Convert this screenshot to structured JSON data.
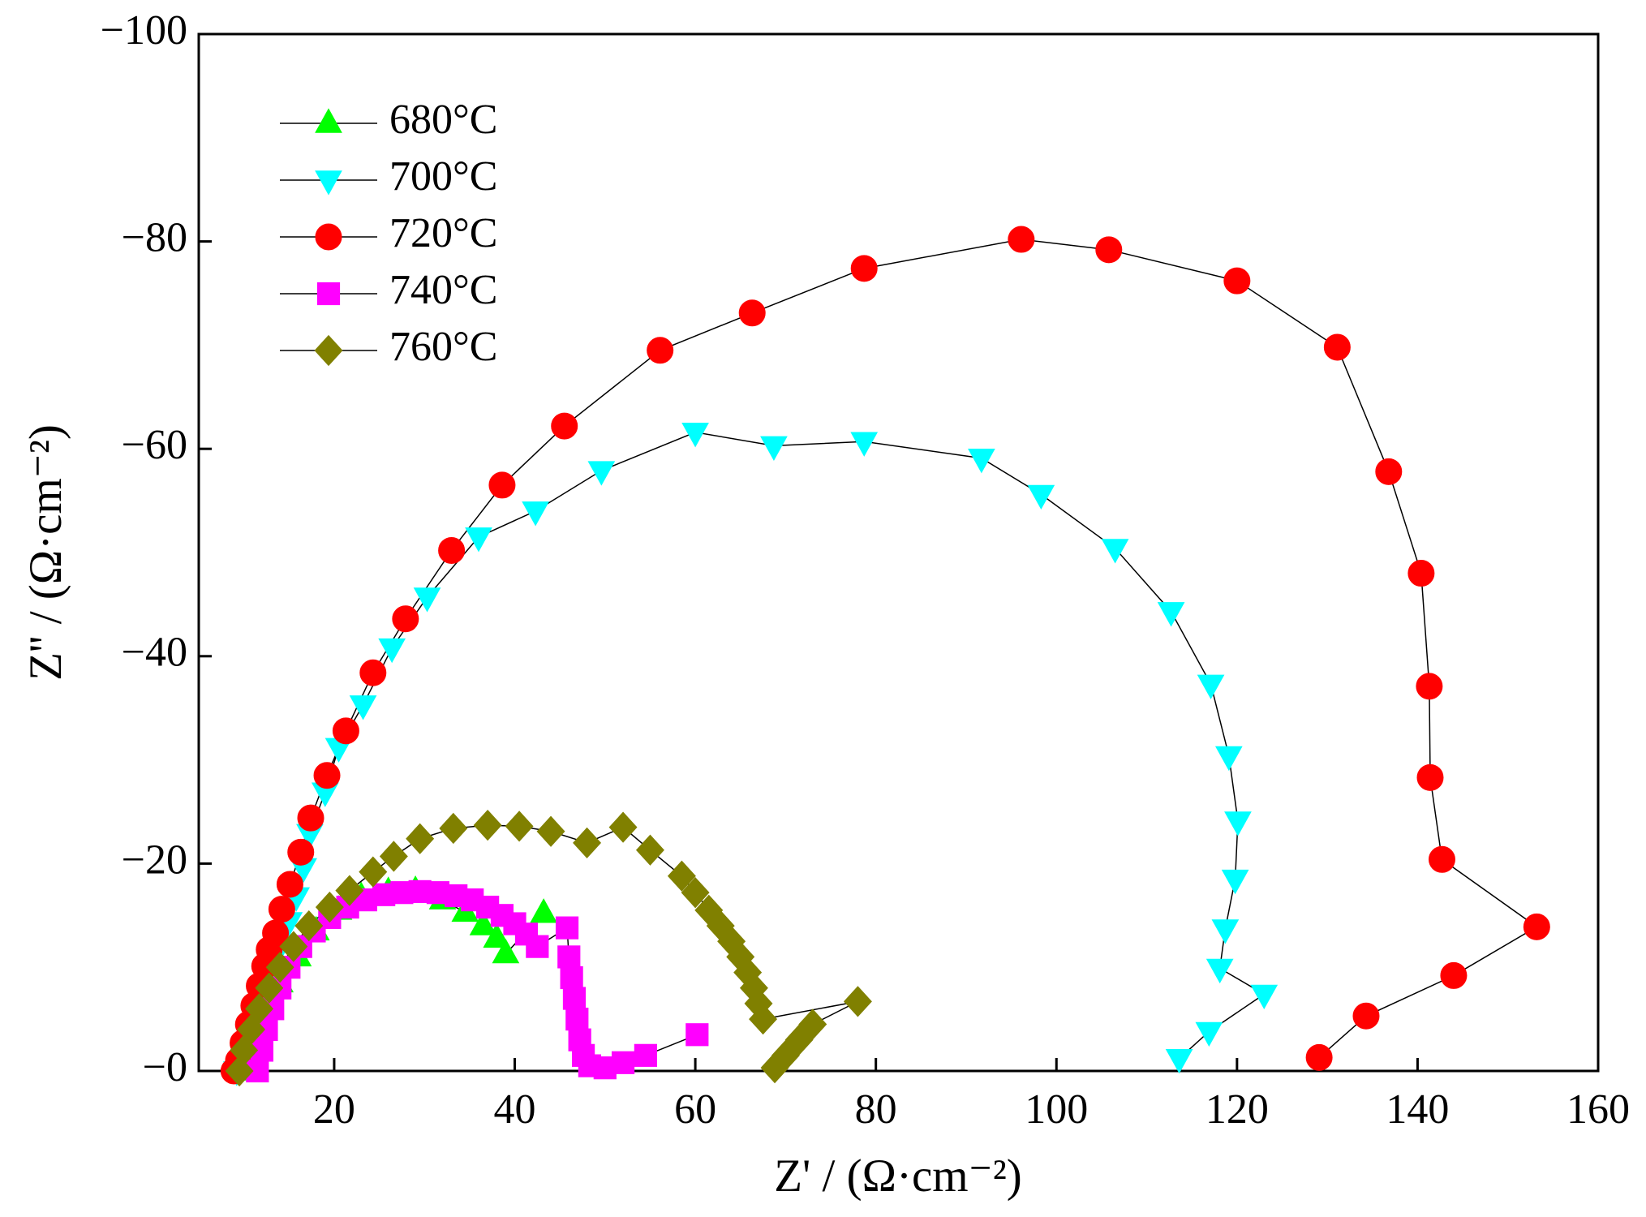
{
  "chart_data": {
    "type": "scatter",
    "xlabel": "Z' / (Ω·cm⁻²)",
    "ylabel": "Z'' / (Ω·cm⁻²)",
    "xlim": [
      5,
      160
    ],
    "xticks": [
      20,
      40,
      60,
      80,
      100,
      120,
      140,
      160
    ],
    "ylim": [
      0,
      -100
    ],
    "yticks": [
      {
        "value": 0,
        "label": "−0"
      },
      {
        "value": -20,
        "label": "−20"
      },
      {
        "value": -40,
        "label": "−40"
      },
      {
        "value": -60,
        "label": "−60"
      },
      {
        "value": -80,
        "label": "−80"
      },
      {
        "value": -100,
        "label": "−100"
      }
    ],
    "legend": "upper left",
    "line_color": "#000000",
    "series": [
      {
        "name": "680°C",
        "color": "#00ff00",
        "marker": "triangle-up",
        "x": [
          9.5,
          11,
          12.5,
          14,
          16,
          18,
          20.5,
          23,
          26,
          29,
          32,
          34.5,
          36.5,
          38,
          39,
          43.2
        ],
        "values": [
          0,
          -3,
          -6,
          -8.5,
          -11,
          -13.5,
          -15.5,
          -16.8,
          -17.3,
          -17.4,
          -16.5,
          -15.3,
          -14,
          -12.8,
          -11.3,
          -15.2
        ]
      },
      {
        "name": "700°C",
        "color": "#00ffff",
        "marker": "triangle-down",
        "x": [
          9.2,
          10,
          10.8,
          11.6,
          12.4,
          13.2,
          14,
          15,
          15.8,
          16.6,
          17.3,
          19,
          20.5,
          23.2,
          26.4,
          30.3,
          36,
          42.3,
          49.6,
          60,
          68.7,
          78.7,
          91.7,
          98.3,
          106.5,
          112.7,
          117.1,
          119.1,
          120.1,
          119.8,
          118.7,
          118.1,
          123,
          116.9,
          113.6
        ],
        "values": [
          0,
          -2,
          -4,
          -6,
          -8,
          -10,
          -12,
          -14.4,
          -16.8,
          -19.6,
          -22.9,
          -26.9,
          -31.2,
          -35.3,
          -40.8,
          -45.7,
          -51.5,
          -54,
          -57.9,
          -61.6,
          -60.3,
          -60.7,
          -59.1,
          -55.6,
          -50.4,
          -44.3,
          -37.3,
          -30.4,
          -24.1,
          -18.5,
          -13.7,
          -9.9,
          -7.4,
          -3.8,
          -1.2
        ]
      },
      {
        "name": "720°C",
        "color": "#ff0000",
        "marker": "circle",
        "x": [
          8.9,
          9.4,
          9.9,
          10.5,
          11.1,
          11.7,
          12.3,
          12.8,
          13.5,
          14.2,
          15.1,
          16.3,
          17.4,
          19.2,
          21.3,
          24.3,
          27.9,
          33,
          38.6,
          45.5,
          56.1,
          66.3,
          78.7,
          96.1,
          105.8,
          120,
          131.1,
          136.8,
          140.4,
          141.3,
          141.4,
          142.7,
          153.2,
          144,
          134.3,
          129.1
        ],
        "values": [
          0,
          -1,
          -2.7,
          -4.5,
          -6.3,
          -8.2,
          -10.1,
          -11.7,
          -13.3,
          -15.6,
          -18,
          -21.1,
          -24.4,
          -28.5,
          -32.8,
          -38.4,
          -43.6,
          -50.2,
          -56.5,
          -62.2,
          -69.5,
          -73.1,
          -77.4,
          -80.2,
          -79.2,
          -76.2,
          -69.8,
          -57.8,
          -48,
          -37.1,
          -28.3,
          -20.4,
          -13.9,
          -9.2,
          -5.3,
          -1.3
        ]
      },
      {
        "name": "740°C",
        "color": "#ff00ff",
        "marker": "square",
        "x": [
          11.5,
          12,
          12.5,
          13.2,
          14,
          15,
          16.3,
          17.8,
          19.5,
          21.5,
          23.5,
          25.5,
          27.5,
          29.5,
          31.5,
          33.5,
          35.3,
          37,
          38.6,
          40,
          41.3,
          42.5,
          45.8,
          46,
          46.3,
          46.6,
          46.9,
          47.2,
          47.6,
          48.3,
          50,
          52,
          54.5,
          60.2
        ],
        "values": [
          0,
          -2,
          -4,
          -6,
          -8,
          -10,
          -12,
          -13.5,
          -14.8,
          -15.8,
          -16.5,
          -17,
          -17.2,
          -17.3,
          -17.2,
          -16.9,
          -16.5,
          -15.8,
          -15,
          -14.2,
          -13.2,
          -12,
          -13.8,
          -11,
          -9,
          -7,
          -5,
          -3,
          -1.5,
          -0.5,
          -0.3,
          -0.8,
          -1.5,
          -3.5
        ]
      },
      {
        "name": "760°C",
        "color": "#808000",
        "marker": "diamond",
        "x": [
          9.5,
          10,
          10.8,
          11.7,
          12.8,
          14,
          15.5,
          17.2,
          19.5,
          21.7,
          24.3,
          26.6,
          29.5,
          33.2,
          37,
          40.5,
          44,
          48,
          52,
          55,
          58.5,
          60,
          61.5,
          62.8,
          64,
          65,
          65.8,
          66.5,
          67,
          67.5,
          78,
          73,
          71.5,
          70,
          68.8
        ],
        "values": [
          0,
          -2,
          -4,
          -6,
          -8,
          -10,
          -12,
          -14,
          -15.8,
          -17.4,
          -19.2,
          -20.7,
          -22.4,
          -23.4,
          -23.7,
          -23.6,
          -23.1,
          -22,
          -23.5,
          -21.3,
          -18.8,
          -17.2,
          -15.5,
          -14,
          -12.5,
          -11,
          -9.5,
          -8,
          -6.5,
          -5,
          -6.7,
          -4.5,
          -3,
          -1.5,
          -0.3
        ]
      }
    ]
  }
}
